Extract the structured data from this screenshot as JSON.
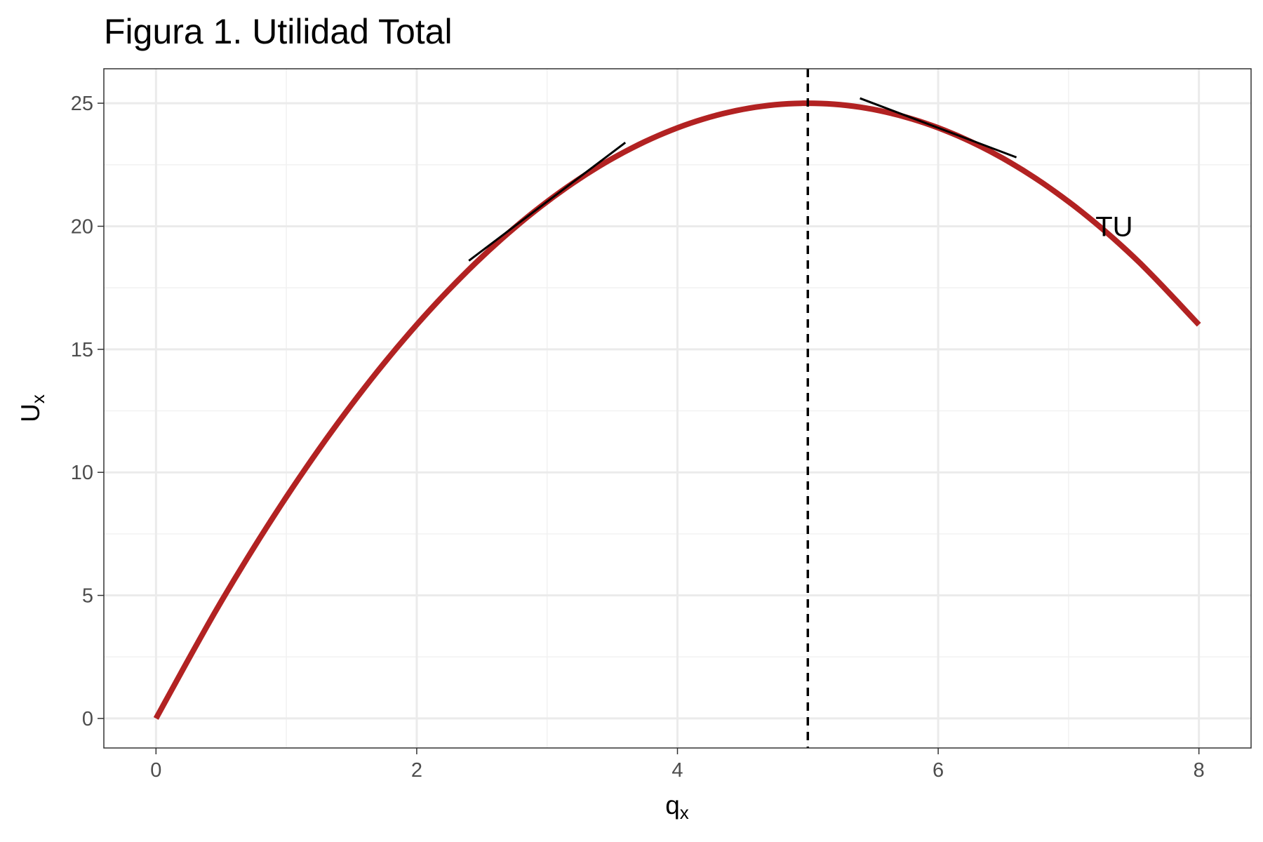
{
  "chart_data": {
    "type": "line",
    "title": "Figura 1. Utilidad Total",
    "xlabel": "q",
    "xlabel_sub": "x",
    "ylabel": "U",
    "ylabel_sub": "x",
    "xlim": [
      -0.4,
      8.4
    ],
    "ylim": [
      -1.2,
      26.4
    ],
    "x_ticks": [
      0,
      2,
      4,
      6,
      8
    ],
    "x_tick_labels": [
      "0",
      "2",
      "4",
      "6",
      "8"
    ],
    "y_ticks": [
      0,
      5,
      10,
      15,
      20,
      25
    ],
    "y_tick_labels": [
      "0",
      "5",
      "10",
      "15",
      "20",
      "25"
    ],
    "grid": true,
    "series": [
      {
        "name": "TU",
        "x": [
          0,
          0.5,
          1,
          1.5,
          2,
          2.5,
          3,
          3.5,
          4,
          4.5,
          5,
          5.5,
          6,
          6.5,
          7,
          7.5,
          8
        ],
        "y": [
          0,
          4.75,
          9,
          12.75,
          16,
          18.75,
          21,
          22.75,
          24,
          24.75,
          25,
          24.75,
          24,
          22.75,
          21,
          18.75,
          16
        ],
        "color": "#b22222"
      }
    ],
    "tangent_lines": [
      {
        "x": [
          2.4,
          3.6
        ],
        "y": [
          18.6,
          23.4
        ],
        "color": "#000000"
      },
      {
        "x": [
          5.4,
          6.6
        ],
        "y": [
          25.2,
          22.8
        ],
        "color": "#000000"
      }
    ],
    "vline": {
      "x": 5,
      "style": "dashed",
      "color": "#000000"
    },
    "annotations": [
      {
        "text": "TU",
        "x": 7.35,
        "y": 20
      }
    ],
    "colors": {
      "curve": "#b22222",
      "grid_major": "#ebebeb",
      "grid_minor": "#f2f2f2",
      "panel_border": "#333333",
      "tick_text": "#4d4d4d"
    }
  }
}
